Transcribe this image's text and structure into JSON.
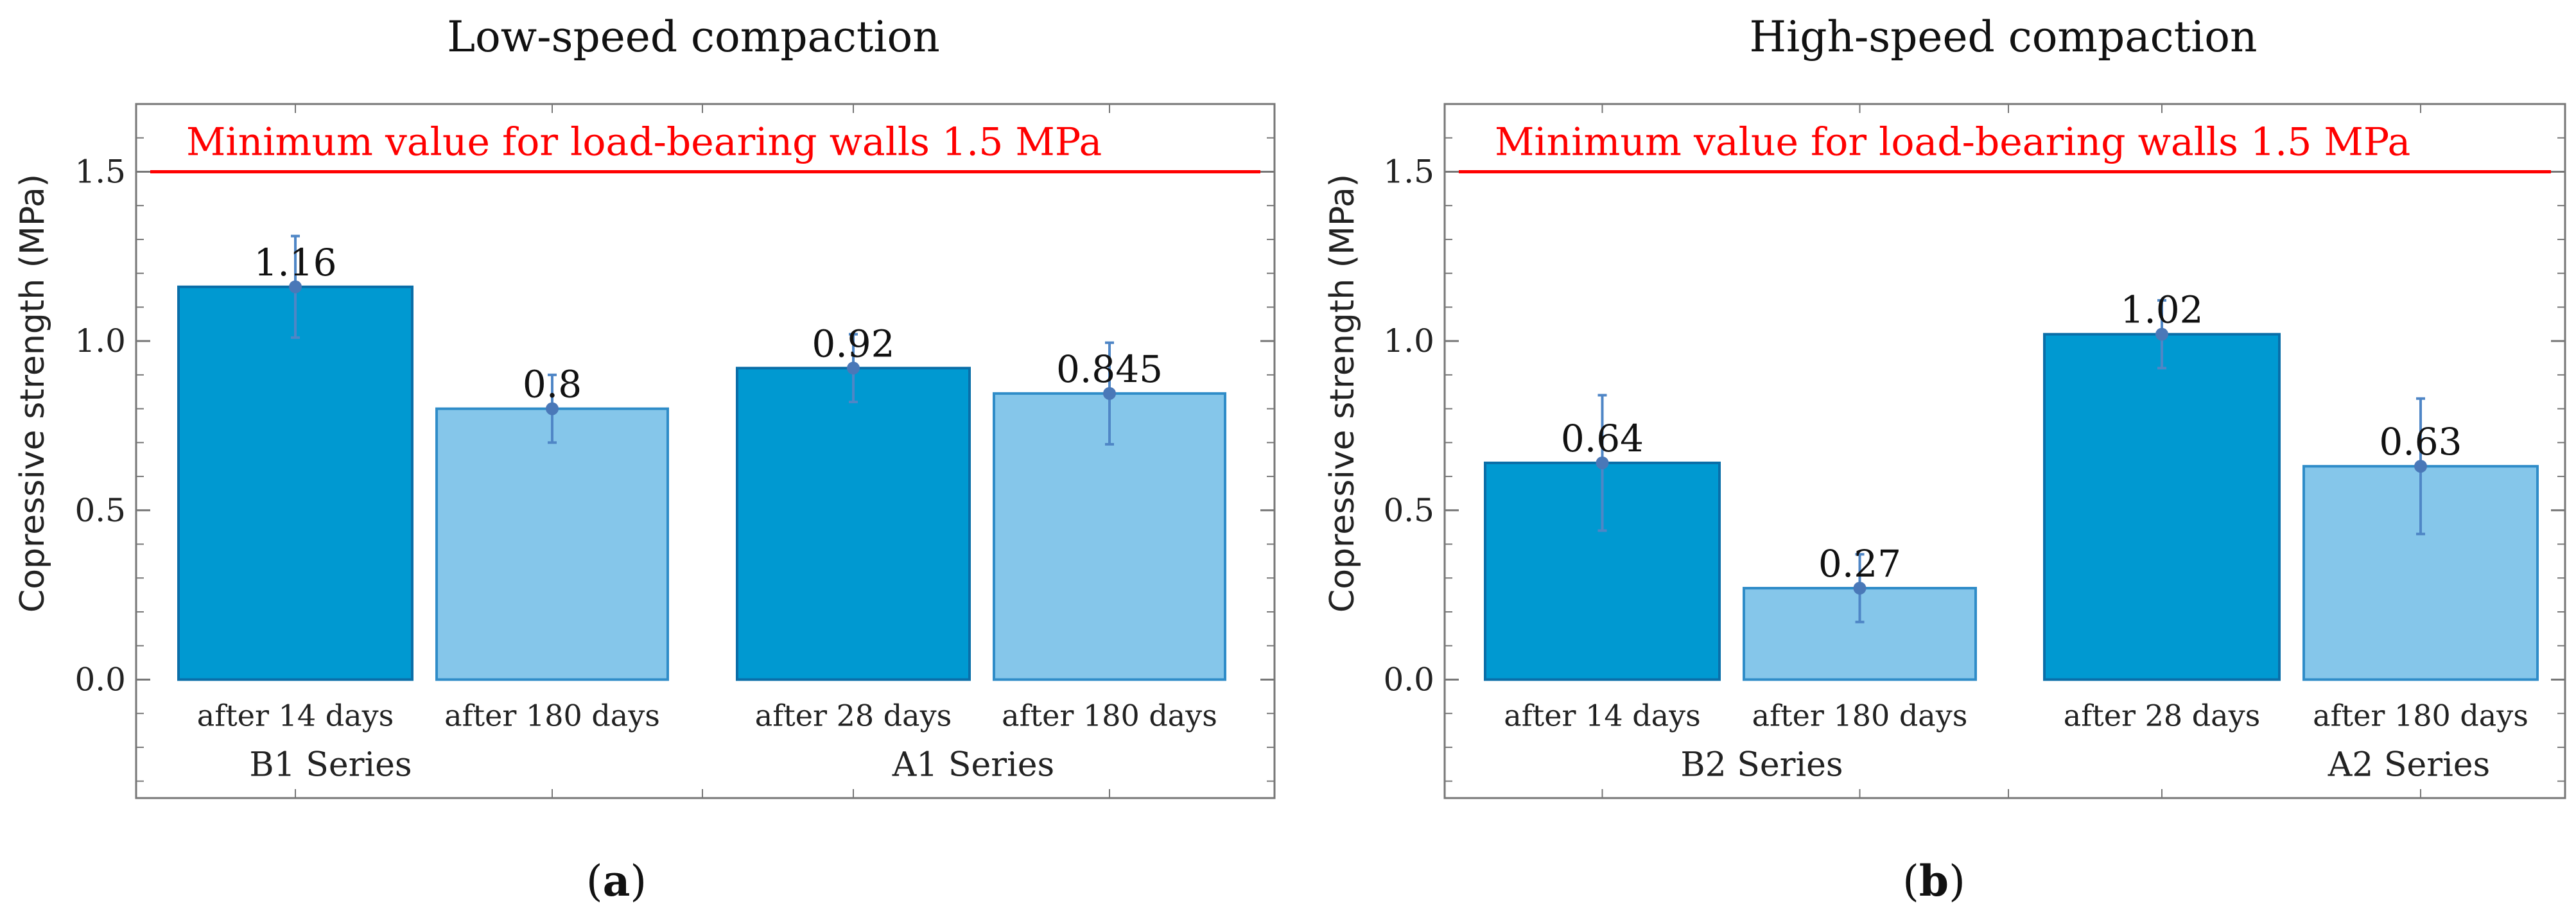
{
  "chart_data": [
    {
      "type": "bar",
      "title": "Low-speed compaction",
      "ylabel": "Copressive strength (MPa)",
      "ylim": [
        -0.35,
        1.7
      ],
      "yticks": [
        "0.0",
        "0.5",
        "1.0",
        "1.5"
      ],
      "panel_label": {
        "open": "(",
        "letter": "a",
        "close": ")"
      },
      "reference_line": {
        "value": 1.5,
        "label": "Minimum value for load-bearing walls 1.5 MPa",
        "color": "#ff0000"
      },
      "groups": [
        {
          "name": "B1 Series",
          "bars": [
            {
              "category": "after 14 days",
              "value": 1.16,
              "label": "1.16",
              "error": 0.15,
              "color": "#0099d1"
            },
            {
              "category": "after 180 days",
              "value": 0.8,
              "label": "0.8",
              "error": 0.1,
              "color": "#85c6ea"
            }
          ]
        },
        {
          "name": "A1 Series",
          "bars": [
            {
              "category": "after 28 days",
              "value": 0.92,
              "label": "0.92",
              "error": 0.1,
              "color": "#0099d1"
            },
            {
              "category": "after 180 days",
              "value": 0.845,
              "label": "0.845",
              "error": 0.15,
              "color": "#85c6ea"
            }
          ]
        }
      ]
    },
    {
      "type": "bar",
      "title": "High-speed compaction",
      "ylabel": "Copressive strength (MPa)",
      "ylim": [
        -0.35,
        1.7
      ],
      "yticks": [
        "0.0",
        "0.5",
        "1.0",
        "1.5"
      ],
      "panel_label": {
        "open": "(",
        "letter": "b",
        "close": ")"
      },
      "reference_line": {
        "value": 1.5,
        "label": "Minimum value for load-bearing walls 1.5 MPa",
        "color": "#ff0000"
      },
      "groups": [
        {
          "name": "B2 Series",
          "bars": [
            {
              "category": "after 14 days",
              "value": 0.64,
              "label": "0.64",
              "error": 0.2,
              "color": "#0099d1"
            },
            {
              "category": "after 180 days",
              "value": 0.27,
              "label": "0.27",
              "error": 0.1,
              "color": "#85c6ea"
            }
          ]
        },
        {
          "name": "A2 Series",
          "bars": [
            {
              "category": "after 28 days",
              "value": 1.02,
              "label": "1.02",
              "error": 0.1,
              "color": "#0099d1"
            },
            {
              "category": "after 180 days",
              "value": 0.63,
              "label": "0.63",
              "error": 0.2,
              "color": "#85c6ea"
            }
          ]
        }
      ]
    }
  ]
}
